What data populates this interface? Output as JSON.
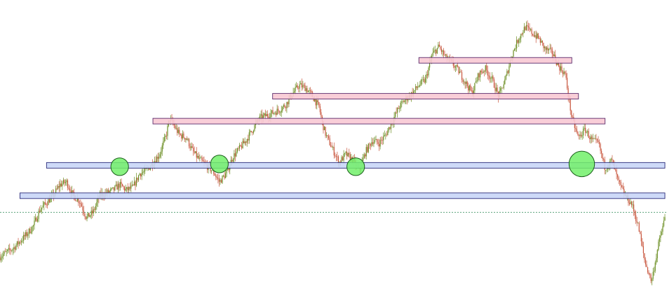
{
  "chart_data": {
    "type": "candlestick",
    "title": "",
    "xlabel": "",
    "ylabel": "",
    "grid": false,
    "legend": "none",
    "xlim": [
      0,
      100
    ],
    "ylim": [
      0,
      100
    ],
    "price_path": [
      [
        0,
        14
      ],
      [
        2,
        17
      ],
      [
        4,
        22
      ],
      [
        5,
        25
      ],
      [
        6,
        31
      ],
      [
        8,
        36
      ],
      [
        9,
        40
      ],
      [
        10,
        41
      ],
      [
        11,
        36
      ],
      [
        12,
        34
      ],
      [
        13,
        28
      ],
      [
        14,
        30
      ],
      [
        15,
        36
      ],
      [
        16,
        37
      ],
      [
        17,
        38
      ],
      [
        18,
        40
      ],
      [
        19,
        38
      ],
      [
        20,
        39
      ],
      [
        21,
        44
      ],
      [
        22,
        45
      ],
      [
        23,
        48
      ],
      [
        24,
        51
      ],
      [
        25,
        58
      ],
      [
        25.5,
        64
      ],
      [
        26,
        62
      ],
      [
        27,
        58
      ],
      [
        28,
        57
      ],
      [
        29,
        52
      ],
      [
        30,
        49
      ],
      [
        31,
        47
      ],
      [
        32,
        45
      ],
      [
        33,
        41
      ],
      [
        34,
        44
      ],
      [
        35,
        50
      ],
      [
        36,
        53
      ],
      [
        37,
        56
      ],
      [
        38,
        60
      ],
      [
        39,
        64
      ],
      [
        40,
        65
      ],
      [
        41,
        66
      ],
      [
        42,
        67
      ],
      [
        43,
        69
      ],
      [
        44,
        73
      ],
      [
        45,
        76
      ],
      [
        46,
        75
      ],
      [
        47,
        72
      ],
      [
        48,
        68
      ],
      [
        48.5,
        62
      ],
      [
        49,
        58
      ],
      [
        50,
        53
      ],
      [
        51,
        48
      ],
      [
        52,
        51
      ],
      [
        53,
        49
      ],
      [
        54,
        45
      ],
      [
        55,
        52
      ],
      [
        56,
        56
      ],
      [
        57,
        55
      ],
      [
        58,
        58
      ],
      [
        59,
        63
      ],
      [
        60,
        68
      ],
      [
        61,
        71
      ],
      [
        62,
        73
      ],
      [
        63,
        76
      ],
      [
        64,
        78
      ],
      [
        65,
        87
      ],
      [
        66,
        90
      ],
      [
        67,
        86
      ],
      [
        68,
        84
      ],
      [
        69,
        81
      ],
      [
        70,
        77
      ],
      [
        71,
        73
      ],
      [
        72,
        80
      ],
      [
        73,
        82
      ],
      [
        74,
        78
      ],
      [
        75,
        72
      ],
      [
        76,
        78
      ],
      [
        77,
        87
      ],
      [
        78,
        93
      ],
      [
        79,
        97
      ],
      [
        80,
        95
      ],
      [
        81,
        93
      ],
      [
        82,
        89
      ],
      [
        83,
        88
      ],
      [
        84,
        83
      ],
      [
        85,
        80
      ],
      [
        85.5,
        72
      ],
      [
        86,
        64
      ],
      [
        87,
        57
      ],
      [
        88,
        60
      ],
      [
        89,
        56
      ],
      [
        90,
        55
      ],
      [
        91,
        46
      ],
      [
        92,
        49
      ],
      [
        93,
        41
      ],
      [
        94,
        36
      ],
      [
        95,
        33
      ],
      [
        96,
        25
      ],
      [
        97,
        12
      ],
      [
        98,
        5
      ],
      [
        99,
        18
      ],
      [
        100,
        28
      ]
    ],
    "support_zones": [
      {
        "x0": 7,
        "x1": 100,
        "y": 47
      },
      {
        "x0": 3,
        "x1": 100,
        "y": 36
      }
    ],
    "resistance_zones": [
      {
        "x0": 63,
        "x1": 86,
        "y": 85
      },
      {
        "x0": 41,
        "x1": 87,
        "y": 72
      },
      {
        "x0": 23,
        "x1": 91,
        "y": 63
      }
    ],
    "touch_points": [
      {
        "x": 18,
        "y": 46.5,
        "size": 0.9
      },
      {
        "x": 33,
        "y": 47.5,
        "size": 0.9
      },
      {
        "x": 53.5,
        "y": 46.5,
        "size": 0.9
      },
      {
        "x": 87.5,
        "y": 47.5,
        "size": 1.3
      }
    ],
    "last_price_line": 30
  },
  "colors": {
    "up": "#6b8e23",
    "down": "#c8553d",
    "support_fill": "#c9d6f7",
    "support_stroke": "#2b2b7a",
    "resistance_fill": "#f8c9d4",
    "resistance_stroke": "#5b2b6b",
    "touch_fill": "#72f06a",
    "touch_stroke": "#1a5e1a",
    "price_line": "#2e8b57"
  }
}
